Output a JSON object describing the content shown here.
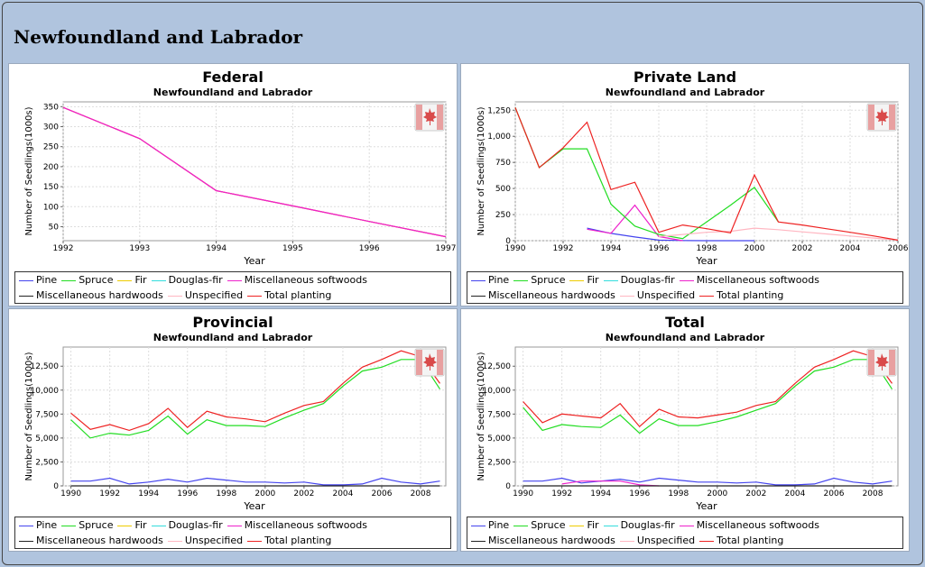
{
  "page": {
    "title": "Newfoundland and Labrador"
  },
  "legend": {
    "row1": [
      "Pine",
      "Spruce",
      "Fir",
      "Douglas-fir",
      "Miscellaneous softwoods"
    ],
    "row2": [
      "Miscellaneous hardwoods",
      "Unspecified",
      "Total planting"
    ]
  },
  "colors": {
    "Pine": "#4444ee",
    "Spruce": "#22dd22",
    "Fir": "#eecc00",
    "Douglas-fir": "#33dddd",
    "Miscellaneous softwoods": "#ee22cc",
    "Miscellaneous hardwoods": "#222222",
    "Unspecified": "#ffb6c1",
    "Total planting": "#ee2222"
  },
  "flag_icon": "canada-flag-icon",
  "chart_data": [
    {
      "type": "line",
      "title": "Federal",
      "subtitle": "Newfoundland and Labrador",
      "xlabel": "Year",
      "ylabel": "Number of Seedlings(1000s)",
      "xlim": [
        1992,
        1997
      ],
      "ylim": [
        15,
        362
      ],
      "xticks": [
        1992,
        1993,
        1994,
        1995,
        1996,
        1997
      ],
      "yticks": [
        50,
        100,
        150,
        200,
        250,
        300,
        350
      ],
      "series": [
        {
          "name": "Total planting",
          "x": [
            1992,
            1993,
            1994,
            1995,
            1996,
            1997
          ],
          "values": [
            348,
            270,
            140,
            102,
            63,
            25
          ]
        },
        {
          "name": "Miscellaneous softwoods",
          "x": [
            1992,
            1993,
            1994,
            1995,
            1996,
            1997
          ],
          "values": [
            348,
            270,
            140,
            102,
            63,
            25
          ]
        }
      ]
    },
    {
      "type": "line",
      "title": "Private Land",
      "subtitle": "Newfoundland and Labrador",
      "xlabel": "Year",
      "ylabel": "Number of Seedlings(1000s)",
      "xlim": [
        1990,
        2006
      ],
      "ylim": [
        0,
        1330
      ],
      "xticks": [
        1990,
        1992,
        1994,
        1996,
        1998,
        2000,
        2002,
        2004,
        2006
      ],
      "yticks": [
        0,
        250,
        500,
        750,
        1000,
        1250
      ],
      "yticklabels": [
        "0",
        "250",
        "500",
        "750",
        "1,000",
        "1,250"
      ],
      "series": [
        {
          "name": "Pine",
          "x": [
            1993,
            1994,
            1995,
            1996,
            1997,
            1998,
            1999,
            2000
          ],
          "values": [
            120,
            70,
            35,
            5,
            2,
            0,
            0,
            0
          ]
        },
        {
          "name": "Miscellaneous softwoods",
          "x": [
            1993,
            1994,
            1995,
            1996,
            1997
          ],
          "values": [
            110,
            70,
            340,
            40,
            0
          ]
        },
        {
          "name": "Spruce",
          "x": [
            1990,
            1991,
            1992,
            1993,
            1994,
            1995,
            1996,
            1997,
            1998,
            1999,
            2000,
            2001
          ],
          "values": [
            1275,
            700,
            880,
            880,
            350,
            140,
            60,
            20,
            180,
            340,
            510,
            180
          ]
        },
        {
          "name": "Unspecified",
          "x": [
            1996,
            1997,
            1998,
            1999,
            2000,
            2001,
            2002,
            2003,
            2004,
            2005,
            2006
          ],
          "values": [
            40,
            60,
            80,
            90,
            120,
            105,
            85,
            65,
            45,
            25,
            5
          ]
        },
        {
          "name": "Total planting",
          "x": [
            1990,
            1991,
            1992,
            1993,
            1994,
            1995,
            1996,
            1997,
            1998,
            1999,
            2000,
            2001,
            2002,
            2003,
            2004,
            2005,
            2006
          ],
          "values": [
            1275,
            700,
            890,
            1135,
            490,
            560,
            80,
            150,
            115,
            75,
            630,
            180,
            150,
            115,
            80,
            45,
            5
          ]
        }
      ]
    },
    {
      "type": "line",
      "title": "Provincial",
      "subtitle": "Newfoundland and Labrador",
      "xlabel": "Year",
      "ylabel": "Number of Seedlings(1000s)",
      "xlim": [
        1989.6,
        2009.3
      ],
      "ylim": [
        0,
        14500
      ],
      "xticks": [
        1990,
        1992,
        1994,
        1996,
        1998,
        2000,
        2002,
        2004,
        2006,
        2008
      ],
      "yticks": [
        0,
        2500,
        5000,
        7500,
        10000,
        12500
      ],
      "yticklabels": [
        "0",
        "2,500",
        "5,000",
        "7,500",
        "10,000",
        "12,500"
      ],
      "series": [
        {
          "name": "Pine",
          "x": [
            1990,
            1991,
            1992,
            1993,
            1994,
            1995,
            1996,
            1997,
            1998,
            1999,
            2000,
            2001,
            2002,
            2003,
            2004,
            2005,
            2006,
            2007,
            2008,
            2009
          ],
          "values": [
            500,
            500,
            800,
            200,
            400,
            700,
            400,
            800,
            600,
            400,
            400,
            300,
            400,
            100,
            100,
            200,
            800,
            400,
            200,
            500
          ]
        },
        {
          "name": "Miscellaneous hardwoods",
          "x": [
            1990,
            1991,
            1992,
            1993,
            1994,
            1995,
            1996,
            1997,
            1998,
            1999,
            2000,
            2001,
            2002,
            2003,
            2004,
            2005,
            2006,
            2007,
            2008,
            2009
          ],
          "values": [
            0,
            0,
            0,
            0,
            0,
            0,
            0,
            0,
            0,
            0,
            0,
            0,
            0,
            0,
            0,
            0,
            0,
            0,
            0,
            0
          ]
        },
        {
          "name": "Spruce",
          "x": [
            1990,
            1991,
            1992,
            1993,
            1994,
            1995,
            1996,
            1997,
            1998,
            1999,
            2000,
            2001,
            2002,
            2003,
            2004,
            2005,
            2006,
            2007,
            2008,
            2009
          ],
          "values": [
            6900,
            5000,
            5500,
            5300,
            5800,
            7300,
            5400,
            6900,
            6300,
            6300,
            6200,
            7100,
            7900,
            8600,
            10400,
            12000,
            12400,
            13200,
            13200,
            10100
          ]
        },
        {
          "name": "Total planting",
          "x": [
            1990,
            1991,
            1992,
            1993,
            1994,
            1995,
            1996,
            1997,
            1998,
            1999,
            2000,
            2001,
            2002,
            2003,
            2004,
            2005,
            2006,
            2007,
            2008,
            2009
          ],
          "values": [
            7600,
            5900,
            6400,
            5800,
            6500,
            8100,
            6100,
            7800,
            7200,
            7000,
            6700,
            7600,
            8400,
            8800,
            10700,
            12400,
            13200,
            14100,
            13500,
            10700
          ]
        }
      ]
    },
    {
      "type": "line",
      "title": "Total",
      "subtitle": "Newfoundland and Labrador",
      "xlabel": "Year",
      "ylabel": "Number of Seedlings(1000s)",
      "xlim": [
        1989.6,
        2009.3
      ],
      "ylim": [
        0,
        14500
      ],
      "xticks": [
        1990,
        1992,
        1994,
        1996,
        1998,
        2000,
        2002,
        2004,
        2006,
        2008
      ],
      "yticks": [
        0,
        2500,
        5000,
        7500,
        10000,
        12500
      ],
      "yticklabels": [
        "0",
        "2,500",
        "5,000",
        "7,500",
        "10,000",
        "12,500"
      ],
      "series": [
        {
          "name": "Pine",
          "x": [
            1990,
            1991,
            1992,
            1993,
            1994,
            1995,
            1996,
            1997,
            1998,
            1999,
            2000,
            2001,
            2002,
            2003,
            2004,
            2005,
            2006,
            2007,
            2008,
            2009
          ],
          "values": [
            500,
            500,
            800,
            300,
            500,
            700,
            400,
            800,
            600,
            400,
            400,
            300,
            400,
            100,
            100,
            200,
            800,
            400,
            200,
            500
          ]
        },
        {
          "name": "Miscellaneous softwoods",
          "x": [
            1992,
            1993,
            1994,
            1995,
            1996,
            1997
          ],
          "values": [
            200,
            500,
            500,
            500,
            100,
            0
          ]
        },
        {
          "name": "Miscellaneous hardwoods",
          "x": [
            1990,
            1991,
            1992,
            1993,
            1994,
            1995,
            1996,
            1997,
            1998,
            1999,
            2000,
            2001,
            2002,
            2003,
            2004,
            2005,
            2006,
            2007,
            2008,
            2009
          ],
          "values": [
            0,
            0,
            0,
            0,
            0,
            0,
            0,
            0,
            0,
            0,
            0,
            0,
            0,
            0,
            0,
            0,
            0,
            0,
            0,
            0
          ]
        },
        {
          "name": "Spruce",
          "x": [
            1990,
            1991,
            1992,
            1993,
            1994,
            1995,
            1996,
            1997,
            1998,
            1999,
            2000,
            2001,
            2002,
            2003,
            2004,
            2005,
            2006,
            2007,
            2008,
            2009
          ],
          "values": [
            8200,
            5800,
            6400,
            6200,
            6100,
            7400,
            5500,
            7000,
            6300,
            6300,
            6700,
            7200,
            7900,
            8600,
            10400,
            12000,
            12400,
            13200,
            13200,
            10100
          ]
        },
        {
          "name": "Total planting",
          "x": [
            1990,
            1991,
            1992,
            1993,
            1994,
            1995,
            1996,
            1997,
            1998,
            1999,
            2000,
            2001,
            2002,
            2003,
            2004,
            2005,
            2006,
            2007,
            2008,
            2009
          ],
          "values": [
            8800,
            6600,
            7500,
            7300,
            7100,
            8600,
            6200,
            8000,
            7200,
            7100,
            7400,
            7700,
            8400,
            8800,
            10700,
            12400,
            13200,
            14100,
            13500,
            10700
          ]
        }
      ]
    }
  ]
}
